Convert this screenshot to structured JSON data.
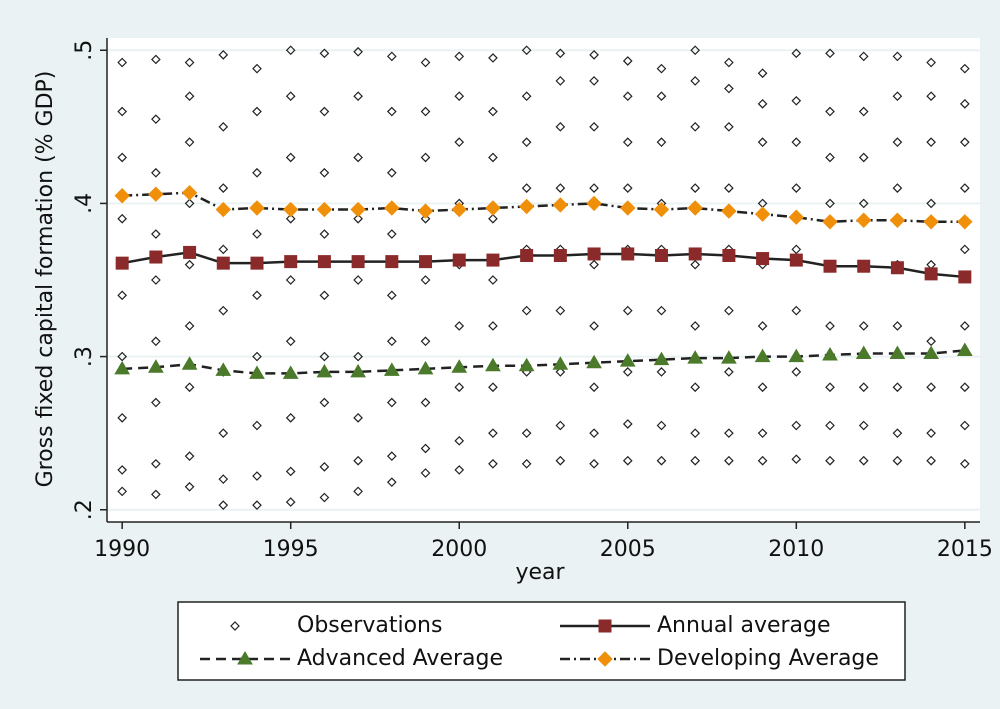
{
  "chart_data": {
    "type": "line",
    "x_label": "year",
    "y_label": "Gross fixed capital formation (% GDP)",
    "x": [
      1990,
      1991,
      1992,
      1993,
      1994,
      1995,
      1996,
      1997,
      1998,
      1999,
      2000,
      2001,
      2002,
      2003,
      2004,
      2005,
      2006,
      2007,
      2008,
      2009,
      2010,
      2011,
      2012,
      2013,
      2014,
      2015
    ],
    "xlim": [
      1989.55,
      2015.45
    ],
    "xticks": [
      1990,
      1995,
      2000,
      2005,
      2010,
      2015
    ],
    "ylim": [
      0.192,
      0.508
    ],
    "yticks": [
      {
        "value": 0.2,
        "label": ".2"
      },
      {
        "value": 0.3,
        "label": ".3"
      },
      {
        "value": 0.4,
        "label": ".4"
      },
      {
        "value": 0.5,
        "label": ".5"
      }
    ],
    "grid": true,
    "series": [
      {
        "name": "Observations",
        "type": "scatter",
        "color": "#222222",
        "values": [
          [
            0.212,
            0.226,
            0.26,
            0.3,
            0.34,
            0.39,
            0.43,
            0.46,
            0.492
          ],
          [
            0.21,
            0.23,
            0.27,
            0.31,
            0.35,
            0.38,
            0.42,
            0.455,
            0.494
          ],
          [
            0.215,
            0.235,
            0.28,
            0.32,
            0.36,
            0.4,
            0.44,
            0.47,
            0.492
          ],
          [
            0.203,
            0.22,
            0.25,
            0.29,
            0.33,
            0.37,
            0.41,
            0.45,
            0.497
          ],
          [
            0.203,
            0.222,
            0.255,
            0.3,
            0.34,
            0.38,
            0.42,
            0.46,
            0.488
          ],
          [
            0.205,
            0.225,
            0.26,
            0.31,
            0.35,
            0.39,
            0.43,
            0.47,
            0.5
          ],
          [
            0.208,
            0.228,
            0.27,
            0.3,
            0.34,
            0.38,
            0.42,
            0.46,
            0.498
          ],
          [
            0.212,
            0.232,
            0.26,
            0.3,
            0.35,
            0.39,
            0.43,
            0.47,
            0.499
          ],
          [
            0.218,
            0.235,
            0.27,
            0.31,
            0.34,
            0.38,
            0.42,
            0.46,
            0.496
          ],
          [
            0.224,
            0.24,
            0.27,
            0.31,
            0.35,
            0.39,
            0.43,
            0.46,
            0.492
          ],
          [
            0.226,
            0.245,
            0.28,
            0.32,
            0.36,
            0.4,
            0.44,
            0.47,
            0.496
          ],
          [
            0.23,
            0.25,
            0.28,
            0.32,
            0.35,
            0.39,
            0.43,
            0.46,
            0.495
          ],
          [
            0.23,
            0.25,
            0.29,
            0.33,
            0.37,
            0.41,
            0.44,
            0.47,
            0.5
          ],
          [
            0.232,
            0.255,
            0.29,
            0.33,
            0.37,
            0.41,
            0.45,
            0.48,
            0.498
          ],
          [
            0.23,
            0.25,
            0.28,
            0.32,
            0.36,
            0.41,
            0.45,
            0.48,
            0.497
          ],
          [
            0.232,
            0.256,
            0.29,
            0.33,
            0.37,
            0.41,
            0.44,
            0.47,
            0.493
          ],
          [
            0.232,
            0.255,
            0.29,
            0.33,
            0.37,
            0.4,
            0.44,
            0.47,
            0.488
          ],
          [
            0.232,
            0.25,
            0.28,
            0.32,
            0.36,
            0.41,
            0.45,
            0.48,
            0.5
          ],
          [
            0.232,
            0.25,
            0.29,
            0.33,
            0.37,
            0.41,
            0.45,
            0.475,
            0.492
          ],
          [
            0.232,
            0.25,
            0.28,
            0.32,
            0.36,
            0.4,
            0.44,
            0.465,
            0.485
          ],
          [
            0.233,
            0.255,
            0.29,
            0.33,
            0.37,
            0.41,
            0.44,
            0.467,
            0.498
          ],
          [
            0.232,
            0.255,
            0.28,
            0.32,
            0.36,
            0.4,
            0.43,
            0.46,
            0.498
          ],
          [
            0.232,
            0.255,
            0.28,
            0.32,
            0.36,
            0.4,
            0.43,
            0.46,
            0.496
          ],
          [
            0.232,
            0.25,
            0.28,
            0.32,
            0.36,
            0.41,
            0.44,
            0.47,
            0.496
          ],
          [
            0.232,
            0.25,
            0.28,
            0.31,
            0.36,
            0.4,
            0.44,
            0.47,
            0.492
          ],
          [
            0.23,
            0.255,
            0.28,
            0.32,
            0.37,
            0.41,
            0.44,
            0.465,
            0.488
          ]
        ]
      },
      {
        "name": "Annual average",
        "marker": "square",
        "color": "#8b2a2a",
        "line_style": "solid",
        "values": [
          0.361,
          0.365,
          0.368,
          0.361,
          0.361,
          0.362,
          0.362,
          0.362,
          0.362,
          0.362,
          0.363,
          0.363,
          0.366,
          0.366,
          0.367,
          0.367,
          0.366,
          0.367,
          0.366,
          0.364,
          0.363,
          0.359,
          0.359,
          0.358,
          0.354,
          0.352
        ]
      },
      {
        "name": "Advanced Average",
        "marker": "triangle",
        "color": "#4a7a2a",
        "line_style": "dash",
        "values": [
          0.292,
          0.293,
          0.295,
          0.291,
          0.289,
          0.289,
          0.29,
          0.29,
          0.291,
          0.292,
          0.293,
          0.294,
          0.294,
          0.295,
          0.296,
          0.297,
          0.298,
          0.299,
          0.299,
          0.3,
          0.3,
          0.301,
          0.302,
          0.302,
          0.302,
          0.304
        ]
      },
      {
        "name": "Developing Average",
        "marker": "diamond",
        "color": "#f0900a",
        "line_style": "dashdot",
        "values": [
          0.405,
          0.406,
          0.407,
          0.396,
          0.397,
          0.396,
          0.396,
          0.396,
          0.397,
          0.395,
          0.396,
          0.397,
          0.398,
          0.399,
          0.4,
          0.397,
          0.396,
          0.397,
          0.395,
          0.393,
          0.391,
          0.388,
          0.389,
          0.389,
          0.388,
          0.388
        ]
      }
    ]
  }
}
